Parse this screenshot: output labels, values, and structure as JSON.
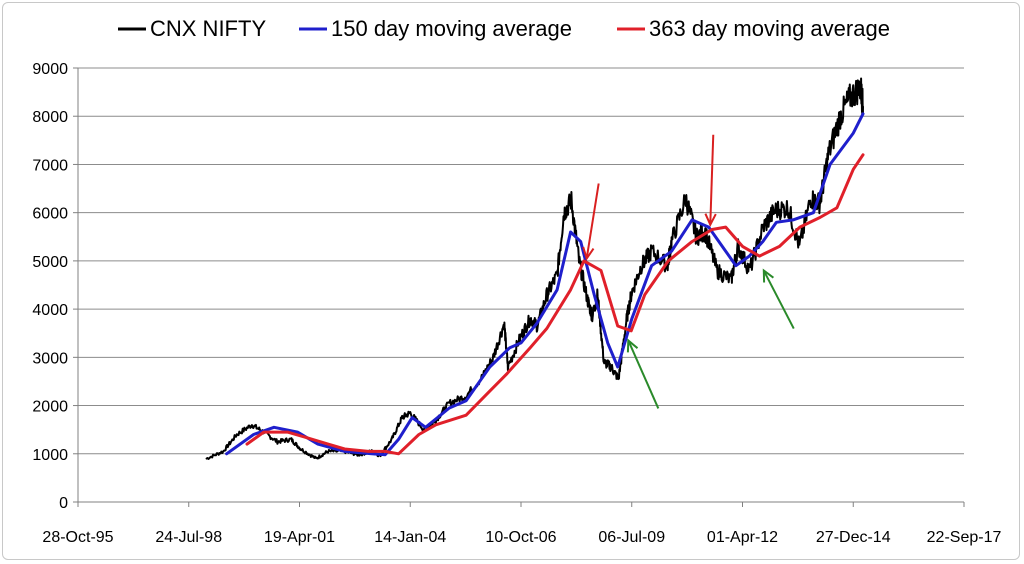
{
  "chart_data": {
    "type": "line",
    "title": "",
    "xlabel": "",
    "ylabel": "",
    "ylim": [
      0,
      9000
    ],
    "yticks": [
      0,
      1000,
      2000,
      3000,
      4000,
      5000,
      6000,
      7000,
      8000,
      9000
    ],
    "ytick_labels": [
      "0",
      "1000",
      "2000",
      "3000",
      "4000",
      "5000",
      "6000",
      "7000",
      "8000",
      "9000"
    ],
    "xlim": [
      "1995-10-28",
      "2017-09-22"
    ],
    "xticks": [
      "1995-10-28",
      "1998-07-24",
      "2001-04-19",
      "2004-01-14",
      "2006-10-10",
      "2009-07-06",
      "2012-04-01",
      "2014-12-27",
      "2017-09-22"
    ],
    "xtick_labels": [
      "28-Oct-95",
      "24-Jul-98",
      "19-Apr-01",
      "14-Jan-04",
      "10-Oct-06",
      "06-Jul-09",
      "01-Apr-12",
      "27-Dec-14",
      "22-Sep-17"
    ],
    "grid": {
      "horizontal": true,
      "vertical": false
    },
    "legend_position": "top",
    "colors": {
      "nifty": "#000000",
      "ma150": "#1f1fcc",
      "ma363": "#e0202a",
      "arrow_red": "#d92020",
      "arrow_green": "#2a8a2a"
    },
    "series": [
      {
        "name": "CNX NIFTY",
        "x": [
          "1999-01-01",
          "1999-06-01",
          "1999-10-01",
          "2000-02-15",
          "2000-06-01",
          "2000-10-01",
          "2001-02-01",
          "2001-05-01",
          "2001-09-15",
          "2002-01-01",
          "2002-06-01",
          "2002-10-01",
          "2003-02-01",
          "2003-04-15",
          "2003-08-01",
          "2003-11-01",
          "2004-01-14",
          "2004-05-17",
          "2004-09-01",
          "2005-01-01",
          "2005-06-01",
          "2005-10-28",
          "2006-02-01",
          "2006-05-11",
          "2006-06-14",
          "2006-10-01",
          "2007-01-01",
          "2007-03-05",
          "2007-06-01",
          "2007-09-01",
          "2007-11-01",
          "2008-01-08",
          "2008-03-17",
          "2008-06-01",
          "2008-07-15",
          "2008-09-01",
          "2008-10-27",
          "2009-01-01",
          "2009-03-09",
          "2009-05-18",
          "2009-07-06",
          "2009-10-01",
          "2010-01-01",
          "2010-05-25",
          "2010-07-01",
          "2010-11-05",
          "2011-02-10",
          "2011-05-01",
          "2011-08-15",
          "2011-12-20",
          "2012-02-20",
          "2012-06-04",
          "2012-10-05",
          "2013-01-20",
          "2013-05-20",
          "2013-08-28",
          "2013-12-09",
          "2014-03-01",
          "2014-05-16",
          "2014-09-01",
          "2014-12-01",
          "2015-03-04",
          "2015-03-25"
        ],
        "values": [
          900,
          1050,
          1400,
          1600,
          1450,
          1250,
          1300,
          1100,
          900,
          1050,
          1050,
          980,
          1050,
          960,
          1300,
          1750,
          1850,
          1500,
          1700,
          2050,
          2200,
          2600,
          3000,
          3700,
          2800,
          3400,
          3800,
          3650,
          4300,
          4700,
          6000,
          6250,
          5000,
          4200,
          3850,
          4300,
          2900,
          2800,
          2550,
          3750,
          4350,
          4900,
          5200,
          4900,
          5400,
          6300,
          5500,
          5600,
          4800,
          4600,
          5300,
          4800,
          5700,
          6050,
          6100,
          5300,
          6300,
          6200,
          7200,
          8000,
          8400,
          8600,
          8200
        ]
      },
      {
        "name": "150 day moving average",
        "x": [
          "1999-07-01",
          "2000-03-01",
          "2000-09-01",
          "2001-04-01",
          "2001-10-01",
          "2002-06-01",
          "2003-02-01",
          "2003-06-01",
          "2003-10-01",
          "2004-02-01",
          "2004-06-01",
          "2005-01-01",
          "2005-06-01",
          "2006-01-01",
          "2006-07-01",
          "2006-10-10",
          "2007-03-01",
          "2007-09-01",
          "2008-01-01",
          "2008-04-01",
          "2008-08-01",
          "2008-12-01",
          "2009-03-01",
          "2009-07-06",
          "2010-01-01",
          "2010-07-01",
          "2011-01-01",
          "2011-06-01",
          "2011-11-01",
          "2012-02-01",
          "2012-06-01",
          "2012-10-01",
          "2013-02-01",
          "2013-07-01",
          "2014-01-01",
          "2014-06-01",
          "2014-12-27",
          "2015-03-25"
        ],
        "values": [
          1000,
          1400,
          1550,
          1450,
          1200,
          1050,
          1000,
          980,
          1300,
          1750,
          1550,
          1950,
          2100,
          2800,
          3200,
          3300,
          3700,
          4400,
          5600,
          5400,
          4300,
          3300,
          2800,
          3800,
          4900,
          5200,
          5850,
          5700,
          5200,
          4900,
          5100,
          5400,
          5800,
          5850,
          6000,
          7000,
          7650,
          8050
        ]
      },
      {
        "name": "363 day moving average",
        "x": [
          "2000-01-01",
          "2000-06-01",
          "2001-01-01",
          "2001-06-01",
          "2002-01-01",
          "2002-06-01",
          "2003-01-01",
          "2003-06-01",
          "2003-10-01",
          "2004-04-01",
          "2004-09-01",
          "2005-06-01",
          "2006-01-01",
          "2006-06-01",
          "2007-01-01",
          "2007-06-01",
          "2008-01-01",
          "2008-05-01",
          "2008-10-01",
          "2009-03-01",
          "2009-07-01",
          "2009-11-01",
          "2010-06-01",
          "2011-01-01",
          "2011-07-01",
          "2011-11-01",
          "2012-04-01",
          "2012-09-01",
          "2013-03-01",
          "2013-09-01",
          "2014-03-01",
          "2014-08-01",
          "2014-12-27",
          "2015-03-25"
        ],
        "values": [
          1200,
          1450,
          1450,
          1350,
          1200,
          1100,
          1050,
          1050,
          1000,
          1400,
          1600,
          1800,
          2300,
          2650,
          3200,
          3600,
          4400,
          5000,
          4800,
          3650,
          3550,
          4300,
          5000,
          5400,
          5650,
          5700,
          5300,
          5100,
          5300,
          5700,
          5900,
          6100,
          6900,
          7200
        ]
      }
    ],
    "annotations": [
      {
        "type": "arrow",
        "color": "red",
        "points_to_date": "2008-05-25",
        "points_to_value": 5050
      },
      {
        "type": "arrow",
        "color": "red",
        "points_to_date": "2011-06-15",
        "points_to_value": 5750
      },
      {
        "type": "arrow",
        "color": "green",
        "points_to_date": "2009-06-05",
        "points_to_value": 3350
      },
      {
        "type": "arrow",
        "color": "green",
        "points_to_date": "2012-10-10",
        "points_to_value": 4800
      }
    ]
  }
}
